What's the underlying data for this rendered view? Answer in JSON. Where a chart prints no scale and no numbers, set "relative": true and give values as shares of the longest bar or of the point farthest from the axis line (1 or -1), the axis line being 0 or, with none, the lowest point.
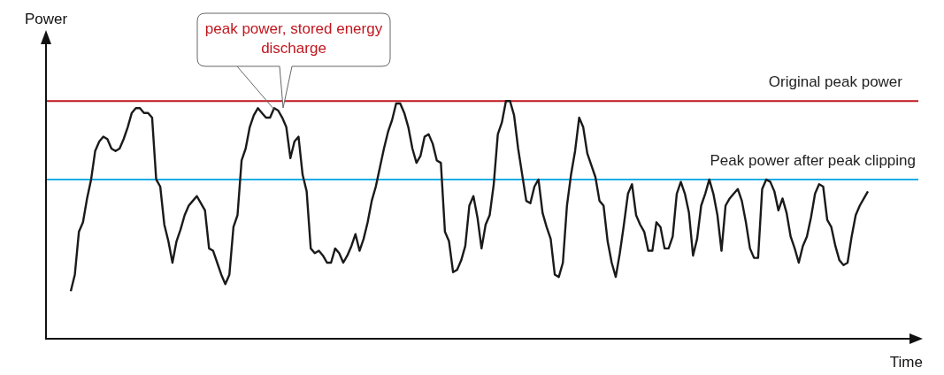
{
  "chart_data": {
    "type": "line",
    "relative": true,
    "xlabel": "Time",
    "ylabel": "Power",
    "marker": "none",
    "line_style": "solid",
    "annotations": [
      "peak power, stored energy discharge"
    ],
    "ref_lines": [
      {
        "axis": "y",
        "value": 1,
        "label": "Original peak power",
        "color": "#c0161e"
      },
      {
        "axis": "y",
        "value": 0.67,
        "label": "Peak power after peak clipping",
        "color": "#1aaee6"
      }
    ],
    "categories": [
      null,
      null,
      null,
      null,
      null,
      null,
      null,
      null,
      null,
      null,
      null,
      null,
      null,
      null,
      null,
      null,
      null,
      null,
      null,
      null,
      null,
      null,
      null,
      null,
      null,
      null,
      null,
      null,
      null,
      null,
      null,
      null,
      null,
      null,
      null,
      null,
      null,
      null,
      null,
      null,
      null,
      null,
      null,
      null,
      null,
      null,
      null,
      null,
      null,
      null,
      null,
      null,
      null,
      null,
      null,
      null,
      null,
      null,
      null,
      null,
      null,
      null,
      null,
      null,
      null,
      null,
      null,
      null,
      null,
      null,
      null,
      null,
      null,
      null,
      null,
      null,
      null,
      null,
      null,
      null,
      null,
      null,
      null,
      null,
      null,
      null,
      null,
      null,
      null,
      null,
      null,
      null,
      null,
      null,
      null,
      null,
      null,
      null,
      null,
      null,
      null,
      null,
      null,
      null,
      null,
      null,
      null,
      null,
      null,
      null,
      null,
      null,
      null,
      null,
      null,
      null,
      null,
      null,
      null,
      null,
      null,
      null,
      null,
      null,
      null,
      null,
      null,
      null,
      null,
      null,
      null,
      null,
      null,
      null,
      null,
      null,
      null,
      null,
      null,
      null,
      null,
      null,
      null,
      null,
      null,
      null,
      null,
      null,
      null,
      null,
      null,
      null,
      null,
      null,
      null,
      null,
      null,
      null,
      null,
      null,
      null,
      null,
      null,
      null,
      null,
      null,
      null,
      null,
      null,
      null,
      null,
      null,
      null,
      null,
      null,
      null,
      null,
      null,
      null,
      null,
      null,
      null,
      null,
      null,
      null,
      null,
      null,
      null,
      null,
      null,
      null,
      null,
      null,
      null,
      null,
      null,
      null
    ],
    "series": [
      {
        "color": "#1a1a1a",
        "values": [
          0.2,
          0.27,
          0.45,
          0.49,
          0.59,
          0.67,
          0.79,
          0.83,
          0.85,
          0.84,
          0.8,
          0.79,
          0.8,
          0.84,
          0.89,
          0.95,
          0.97,
          0.97,
          0.95,
          0.95,
          0.93,
          0.67,
          0.64,
          0.48,
          0.41,
          0.32,
          0.41,
          0.46,
          0.52,
          0.56,
          0.58,
          0.6,
          0.57,
          0.54,
          0.38,
          0.37,
          0.32,
          0.27,
          0.23,
          0.27,
          0.47,
          0.52,
          0.75,
          0.8,
          0.89,
          0.94,
          0.97,
          0.95,
          0.93,
          0.93,
          0.97,
          0.96,
          0.93,
          0.89,
          0.76,
          0.83,
          0.85,
          0.69,
          0.62,
          0.38,
          0.36,
          0.37,
          0.35,
          0.32,
          0.32,
          0.38,
          0.36,
          0.32,
          0.35,
          0.39,
          0.44,
          0.37,
          0.42,
          0.49,
          0.58,
          0.64,
          0.72,
          0.8,
          0.87,
          0.92,
          0.99,
          0.99,
          0.95,
          0.89,
          0.8,
          0.74,
          0.77,
          0.85,
          0.86,
          0.82,
          0.75,
          0.74,
          0.45,
          0.41,
          0.28,
          0.29,
          0.33,
          0.39,
          0.56,
          0.6,
          0.51,
          0.38,
          0.48,
          0.52,
          0.65,
          0.86,
          0.91,
          1,
          1,
          0.94,
          0.8,
          0.69,
          0.58,
          0.57,
          0.64,
          0.67,
          0.53,
          0.47,
          0.42,
          0.27,
          0.26,
          0.32,
          0.56,
          0.69,
          0.79,
          0.93,
          0.89,
          0.78,
          0.73,
          0.68,
          0.58,
          0.56,
          0.41,
          0.32,
          0.26,
          0.36,
          0.48,
          0.61,
          0.65,
          0.52,
          0.48,
          0.45,
          0.37,
          0.37,
          0.49,
          0.47,
          0.38,
          0.38,
          0.43,
          0.61,
          0.66,
          0.61,
          0.53,
          0.35,
          0.42,
          0.56,
          0.61,
          0.67,
          0.61,
          0.52,
          0.37,
          0.56,
          0.59,
          0.61,
          0.63,
          0.58,
          0.49,
          0.38,
          0.34,
          0.34,
          0.63,
          0.67,
          0.66,
          0.62,
          0.54,
          0.59,
          0.53,
          0.43,
          0.38,
          0.32,
          0.39,
          0.43,
          0.51,
          0.61,
          0.65,
          0.64,
          0.5,
          0.47,
          0.39,
          0.33,
          0.31,
          0.32,
          0.43,
          0.52,
          0.56,
          0.59,
          0.62
        ]
      }
    ]
  }
}
